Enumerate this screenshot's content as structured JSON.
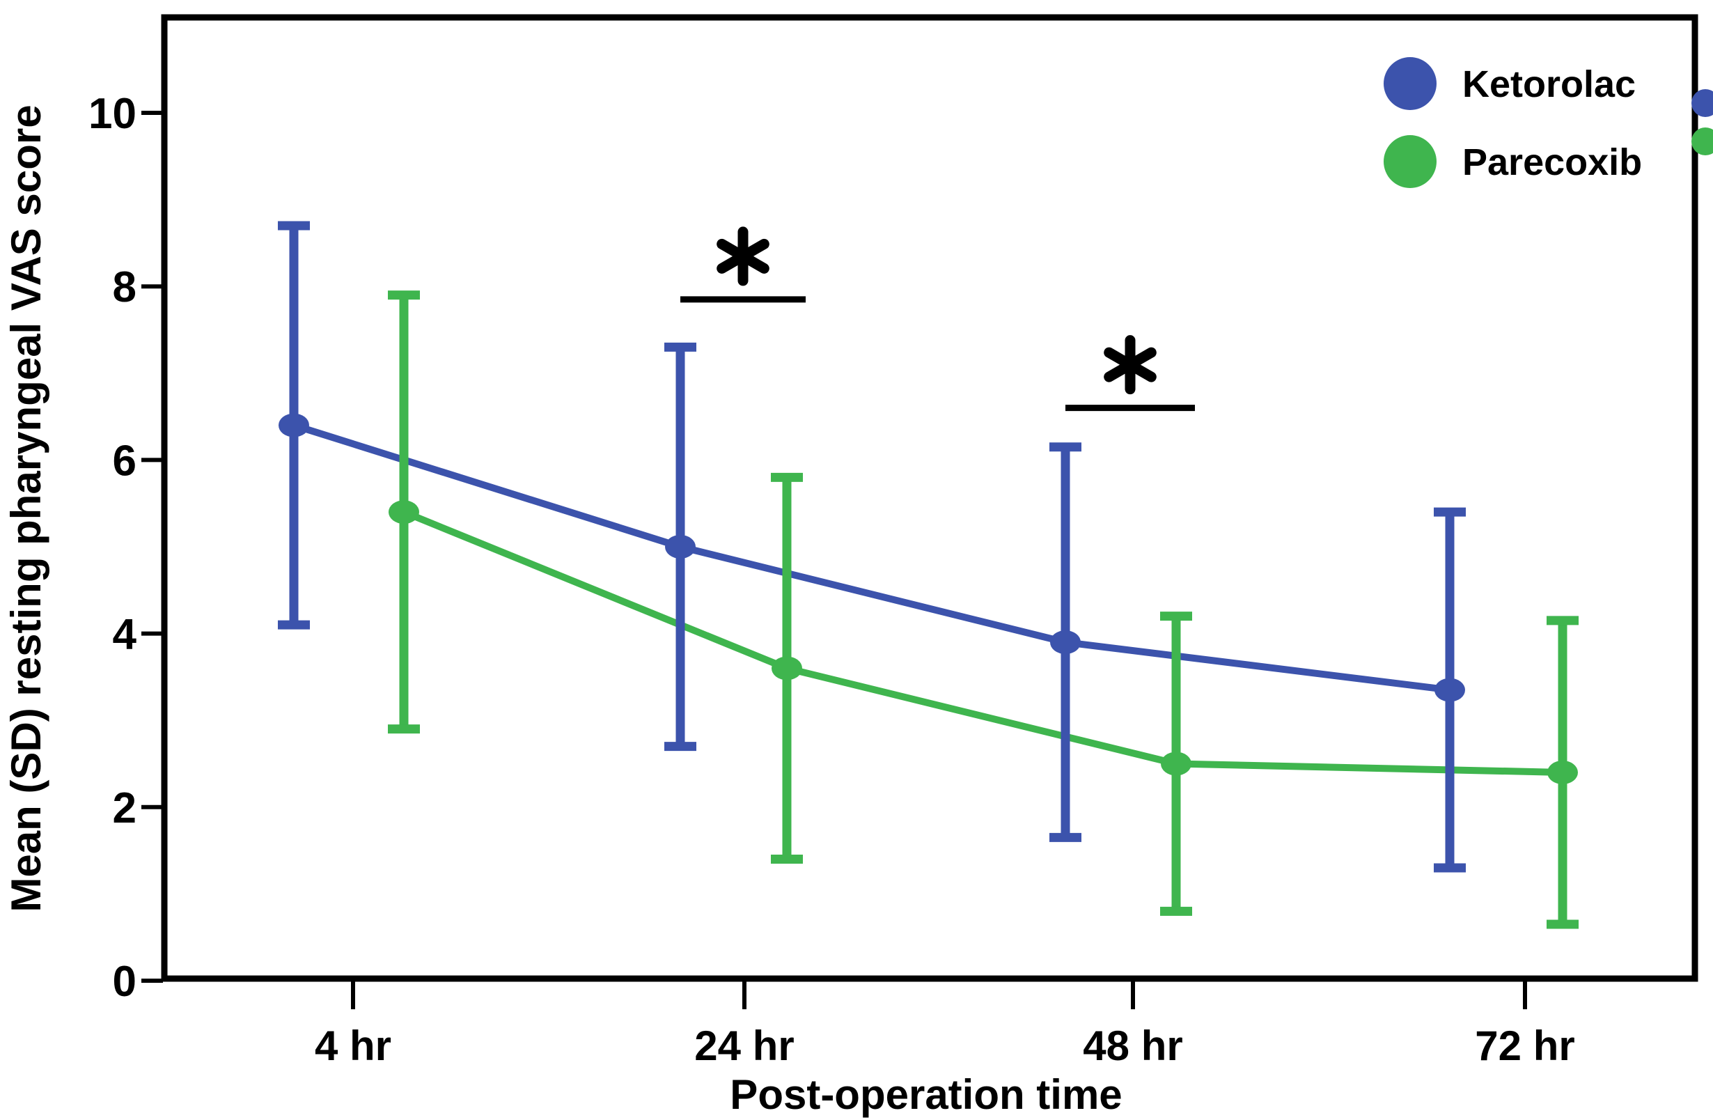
{
  "chart_data": {
    "type": "line",
    "title": "",
    "xlabel": "Post-operation time",
    "ylabel": "Mean (SD) resting pharyngeal VAS score",
    "categories": [
      "4 hr",
      "24 hr",
      "48 hr",
      "72 hr"
    ],
    "y_ticks": [
      0,
      2,
      4,
      6,
      8,
      10
    ],
    "ylim": [
      0,
      11.1
    ],
    "grid": false,
    "error_bars": "SD",
    "legend_position": "top-right-inside",
    "series": [
      {
        "name": "Ketorolac",
        "color": "#3C53AC",
        "means": [
          6.4,
          5.0,
          3.9,
          3.35
        ],
        "sds": [
          2.3,
          2.3,
          2.25,
          2.05
        ]
      },
      {
        "name": "Parecoxib",
        "color": "#3FB54E",
        "means": [
          5.4,
          3.6,
          2.5,
          2.4
        ],
        "sds": [
          2.5,
          2.2,
          1.7,
          1.75
        ]
      }
    ],
    "annotations": [
      {
        "symbol": "*",
        "category": "24 hr",
        "bar_y_value": 7.85
      },
      {
        "symbol": "*",
        "category": "48 hr",
        "bar_y_value": 6.6
      }
    ]
  }
}
